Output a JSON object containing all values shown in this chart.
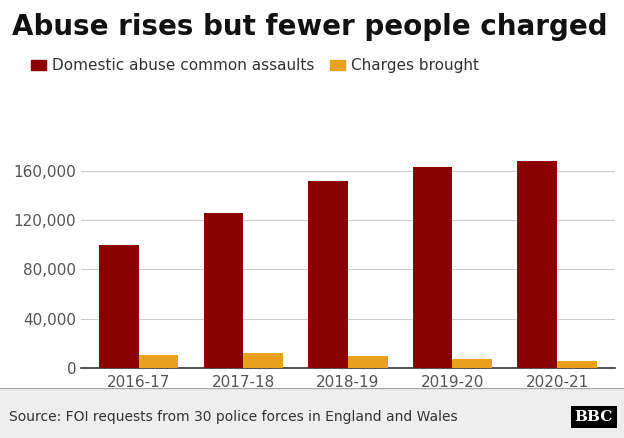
{
  "title": "Abuse rises but fewer people charged",
  "categories": [
    "2016-17",
    "2017-18",
    "2018-19",
    "2019-20",
    "2020-21"
  ],
  "domestic_abuse": [
    100000,
    126000,
    152000,
    163000,
    168000
  ],
  "charges_brought": [
    10500,
    12500,
    10000,
    7000,
    6000
  ],
  "bar_color_abuse": "#8B0000",
  "bar_color_charges": "#E8A020",
  "legend_label_abuse": "Domestic abuse common assaults",
  "legend_label_charges": "Charges brought",
  "ylabel_ticks": [
    0,
    40000,
    80000,
    120000,
    160000
  ],
  "ylabel_tick_labels": [
    "0",
    "40,000",
    "80,000",
    "120,000",
    "160,000"
  ],
  "ylim": [
    0,
    185000
  ],
  "source_text": "Source: FOI requests from 30 police forces in England and Wales",
  "background_color": "#ffffff",
  "footer_background": "#eeeeee",
  "title_fontsize": 20,
  "legend_fontsize": 11,
  "tick_fontsize": 11,
  "source_fontsize": 10
}
